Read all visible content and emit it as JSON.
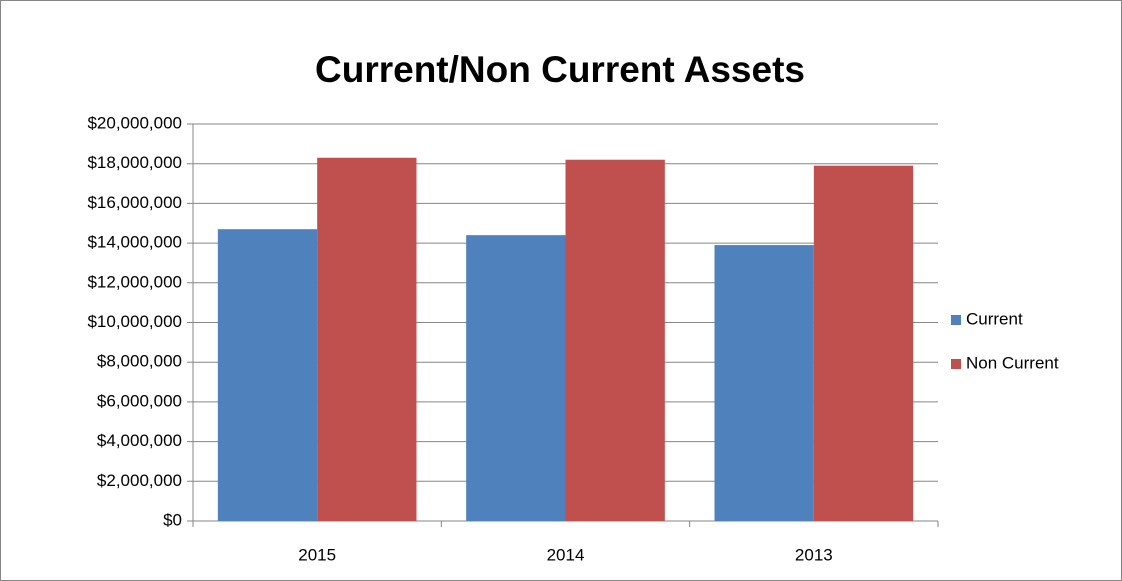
{
  "chart_data": {
    "type": "bar",
    "title": "Current/Non Current Assets",
    "categories": [
      "2015",
      "2014",
      "2013"
    ],
    "series": [
      {
        "name": "Current",
        "color": "#4f81bd",
        "values": [
          14700000,
          14400000,
          13900000
        ]
      },
      {
        "name": "Non Current",
        "color": "#c0504d",
        "values": [
          18300000,
          18200000,
          17900000
        ]
      }
    ],
    "ylim": [
      0,
      20000000
    ],
    "yticks": [
      {
        "value": 0,
        "label": "$0"
      },
      {
        "value": 2000000,
        "label": "$2,000,000"
      },
      {
        "value": 4000000,
        "label": "$4,000,000"
      },
      {
        "value": 6000000,
        "label": "$6,000,000"
      },
      {
        "value": 8000000,
        "label": "$8,000,000"
      },
      {
        "value": 10000000,
        "label": "$10,000,000"
      },
      {
        "value": 12000000,
        "label": "$12,000,000"
      },
      {
        "value": 14000000,
        "label": "$14,000,000"
      },
      {
        "value": 16000000,
        "label": "$16,000,000"
      },
      {
        "value": 18000000,
        "label": "$18,000,000"
      },
      {
        "value": 20000000,
        "label": "$20,000,000"
      }
    ],
    "grid": true,
    "legend": "right"
  }
}
